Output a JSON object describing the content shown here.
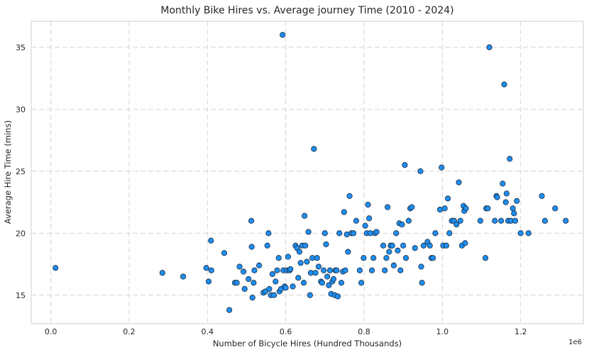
{
  "chart_data": {
    "type": "scatter",
    "title": "Monthly Bike Hires vs. Average journey Time (2010 - 2024)",
    "xlabel": "Number of Bicycle Hires (Hundred Thousands)",
    "ylabel": "Average Hire Time (mins)",
    "x_offset_text": "1e6",
    "xlim": [
      -0.05,
      1.36
    ],
    "ylim": [
      12.7,
      37.1
    ],
    "xticks": [
      0.0,
      0.2,
      0.4,
      0.6,
      0.8,
      1.0,
      1.2
    ],
    "xtick_labels": [
      "0.0",
      "0.2",
      "0.4",
      "0.6",
      "0.8",
      "1.0",
      "1.2"
    ],
    "yticks": [
      15,
      20,
      25,
      30,
      35
    ],
    "ytick_labels": [
      "15",
      "20",
      "25",
      "30",
      "35"
    ],
    "grid": true,
    "point_color": "#1f8ef1",
    "edge_color": "#1a2a3a",
    "points": [
      [
        0.012,
        17.2
      ],
      [
        0.285,
        16.8
      ],
      [
        0.338,
        16.5
      ],
      [
        0.397,
        17.2
      ],
      [
        0.403,
        16.1
      ],
      [
        0.409,
        19.4
      ],
      [
        0.41,
        17.0
      ],
      [
        0.443,
        18.4
      ],
      [
        0.456,
        13.8
      ],
      [
        0.47,
        16.0
      ],
      [
        0.475,
        16.0
      ],
      [
        0.482,
        17.3
      ],
      [
        0.492,
        16.9
      ],
      [
        0.495,
        15.5
      ],
      [
        0.505,
        16.3
      ],
      [
        0.512,
        21.0
      ],
      [
        0.513,
        18.9
      ],
      [
        0.515,
        14.8
      ],
      [
        0.518,
        16.0
      ],
      [
        0.52,
        17.0
      ],
      [
        0.532,
        17.4
      ],
      [
        0.543,
        15.2
      ],
      [
        0.548,
        15.3
      ],
      [
        0.553,
        19.0
      ],
      [
        0.556,
        20.0
      ],
      [
        0.558,
        15.5
      ],
      [
        0.562,
        15.0
      ],
      [
        0.566,
        16.7
      ],
      [
        0.57,
        15.0
      ],
      [
        0.574,
        16.1
      ],
      [
        0.578,
        17.0
      ],
      [
        0.582,
        18.0
      ],
      [
        0.584,
        15.3
      ],
      [
        0.588,
        15.5
      ],
      [
        0.592,
        36.0
      ],
      [
        0.594,
        17.0
      ],
      [
        0.597,
        15.7
      ],
      [
        0.6,
        15.6
      ],
      [
        0.603,
        17.0
      ],
      [
        0.606,
        18.1
      ],
      [
        0.61,
        17.0
      ],
      [
        0.612,
        17.1
      ],
      [
        0.618,
        15.7
      ],
      [
        0.625,
        19.0
      ],
      [
        0.629,
        18.8
      ],
      [
        0.632,
        16.4
      ],
      [
        0.635,
        18.5
      ],
      [
        0.638,
        17.6
      ],
      [
        0.642,
        19.0
      ],
      [
        0.646,
        16.0
      ],
      [
        0.648,
        21.4
      ],
      [
        0.65,
        19.0
      ],
      [
        0.654,
        17.7
      ],
      [
        0.658,
        20.1
      ],
      [
        0.662,
        15.0
      ],
      [
        0.664,
        16.8
      ],
      [
        0.668,
        18.0
      ],
      [
        0.672,
        26.8
      ],
      [
        0.676,
        16.8
      ],
      [
        0.68,
        18.0
      ],
      [
        0.684,
        17.3
      ],
      [
        0.69,
        16.1
      ],
      [
        0.693,
        16.0
      ],
      [
        0.697,
        17.0
      ],
      [
        0.7,
        20.0
      ],
      [
        0.703,
        19.1
      ],
      [
        0.706,
        16.5
      ],
      [
        0.71,
        15.8
      ],
      [
        0.713,
        17.0
      ],
      [
        0.716,
        15.1
      ],
      [
        0.719,
        16.1
      ],
      [
        0.722,
        16.3
      ],
      [
        0.725,
        15.0
      ],
      [
        0.727,
        17.0
      ],
      [
        0.73,
        17.0
      ],
      [
        0.733,
        14.9
      ],
      [
        0.737,
        20.0
      ],
      [
        0.742,
        16.0
      ],
      [
        0.746,
        16.9
      ],
      [
        0.749,
        21.7
      ],
      [
        0.752,
        17.0
      ],
      [
        0.756,
        19.9
      ],
      [
        0.759,
        18.5
      ],
      [
        0.763,
        23.0
      ],
      [
        0.768,
        20.0
      ],
      [
        0.773,
        20.0
      ],
      [
        0.78,
        21.0
      ],
      [
        0.789,
        17.0
      ],
      [
        0.793,
        16.0
      ],
      [
        0.799,
        18.0
      ],
      [
        0.803,
        20.6
      ],
      [
        0.807,
        20.0
      ],
      [
        0.81,
        22.3
      ],
      [
        0.813,
        21.2
      ],
      [
        0.816,
        20.0
      ],
      [
        0.82,
        17.0
      ],
      [
        0.824,
        18.0
      ],
      [
        0.828,
        20.0
      ],
      [
        0.832,
        20.1
      ],
      [
        0.849,
        19.0
      ],
      [
        0.853,
        17.0
      ],
      [
        0.857,
        18.0
      ],
      [
        0.86,
        22.1
      ],
      [
        0.864,
        18.5
      ],
      [
        0.868,
        19.0
      ],
      [
        0.872,
        19.0
      ],
      [
        0.876,
        17.4
      ],
      [
        0.882,
        20.0
      ],
      [
        0.886,
        18.6
      ],
      [
        0.89,
        20.8
      ],
      [
        0.893,
        17.0
      ],
      [
        0.897,
        20.7
      ],
      [
        0.9,
        19.0
      ],
      [
        0.904,
        25.5
      ],
      [
        0.907,
        18.0
      ],
      [
        0.914,
        21.0
      ],
      [
        0.918,
        22.0
      ],
      [
        0.922,
        22.1
      ],
      [
        0.93,
        18.8
      ],
      [
        0.944,
        25.0
      ],
      [
        0.946,
        17.3
      ],
      [
        0.948,
        16.0
      ],
      [
        0.952,
        19.0
      ],
      [
        0.962,
        19.3
      ],
      [
        0.968,
        19.0
      ],
      [
        0.972,
        18.0
      ],
      [
        0.976,
        18.0
      ],
      [
        0.982,
        20.0
      ],
      [
        0.994,
        21.9
      ],
      [
        0.998,
        25.3
      ],
      [
        1.002,
        19.0
      ],
      [
        1.006,
        22.0
      ],
      [
        1.01,
        19.0
      ],
      [
        1.014,
        22.8
      ],
      [
        1.018,
        20.0
      ],
      [
        1.024,
        21.0
      ],
      [
        1.03,
        21.0
      ],
      [
        1.036,
        20.7
      ],
      [
        1.042,
        24.1
      ],
      [
        1.046,
        21.0
      ],
      [
        1.05,
        19.0
      ],
      [
        1.054,
        22.2
      ],
      [
        1.056,
        21.8
      ],
      [
        1.058,
        19.2
      ],
      [
        1.06,
        22.0
      ],
      [
        1.097,
        21.0
      ],
      [
        1.11,
        18.0
      ],
      [
        1.112,
        22.0
      ],
      [
        1.116,
        22.0
      ],
      [
        1.12,
        35.0
      ],
      [
        1.134,
        21.0
      ],
      [
        1.138,
        23.0
      ],
      [
        1.14,
        22.9
      ],
      [
        1.15,
        21.0
      ],
      [
        1.154,
        24.0
      ],
      [
        1.158,
        32.0
      ],
      [
        1.162,
        22.5
      ],
      [
        1.164,
        23.2
      ],
      [
        1.168,
        21.0
      ],
      [
        1.172,
        26.0
      ],
      [
        1.175,
        21.0
      ],
      [
        1.18,
        22.0
      ],
      [
        1.183,
        21.6
      ],
      [
        1.186,
        21.0
      ],
      [
        1.19,
        22.6
      ],
      [
        1.2,
        20.0
      ],
      [
        1.22,
        20.0
      ],
      [
        1.254,
        23.0
      ],
      [
        1.262,
        21.0
      ],
      [
        1.288,
        22.0
      ],
      [
        1.315,
        21.0
      ]
    ]
  }
}
